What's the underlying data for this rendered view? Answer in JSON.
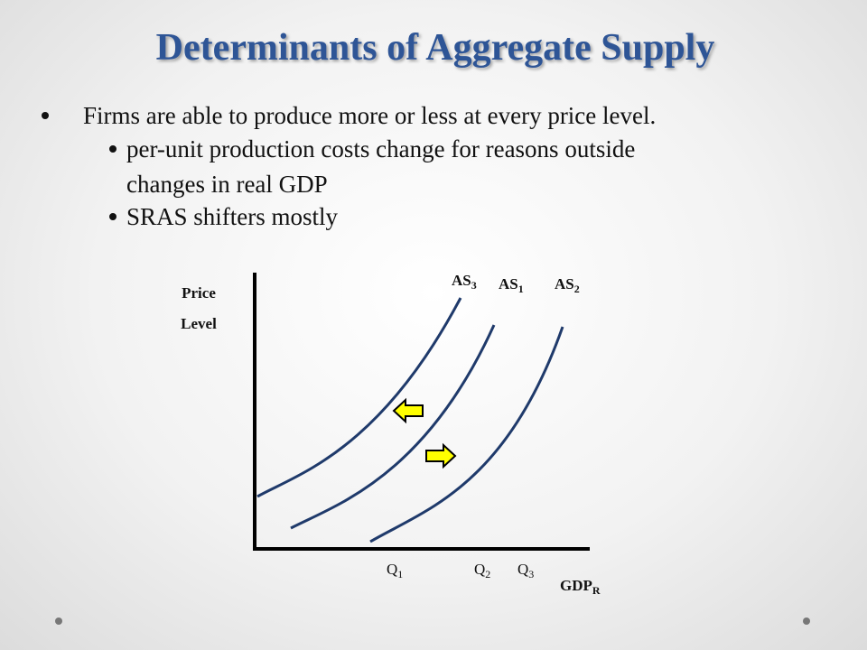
{
  "header": {
    "title": "Determinants of Aggregate Supply"
  },
  "bullets": [
    {
      "text": "Firms are able to produce more or less at every price level.",
      "sub_bullets": [
        {
          "lines": [
            "per-unit production costs change for reasons outside",
            "changes in real GDP"
          ]
        },
        {
          "lines": [
            "SRAS shifters mostly"
          ]
        }
      ]
    }
  ],
  "diagram": {
    "y_axis_label": [
      "Price",
      "Level"
    ],
    "x_axis_label": {
      "text": "GDP",
      "sub": "R"
    },
    "curves": [
      {
        "text": "AS",
        "sub": "3"
      },
      {
        "text": "AS",
        "sub": "1"
      },
      {
        "text": "AS",
        "sub": "2"
      }
    ],
    "quantities": [
      {
        "text": "Q",
        "sub": "1"
      },
      {
        "text": "Q",
        "sub": "2"
      },
      {
        "text": "Q",
        "sub": "3"
      }
    ]
  }
}
